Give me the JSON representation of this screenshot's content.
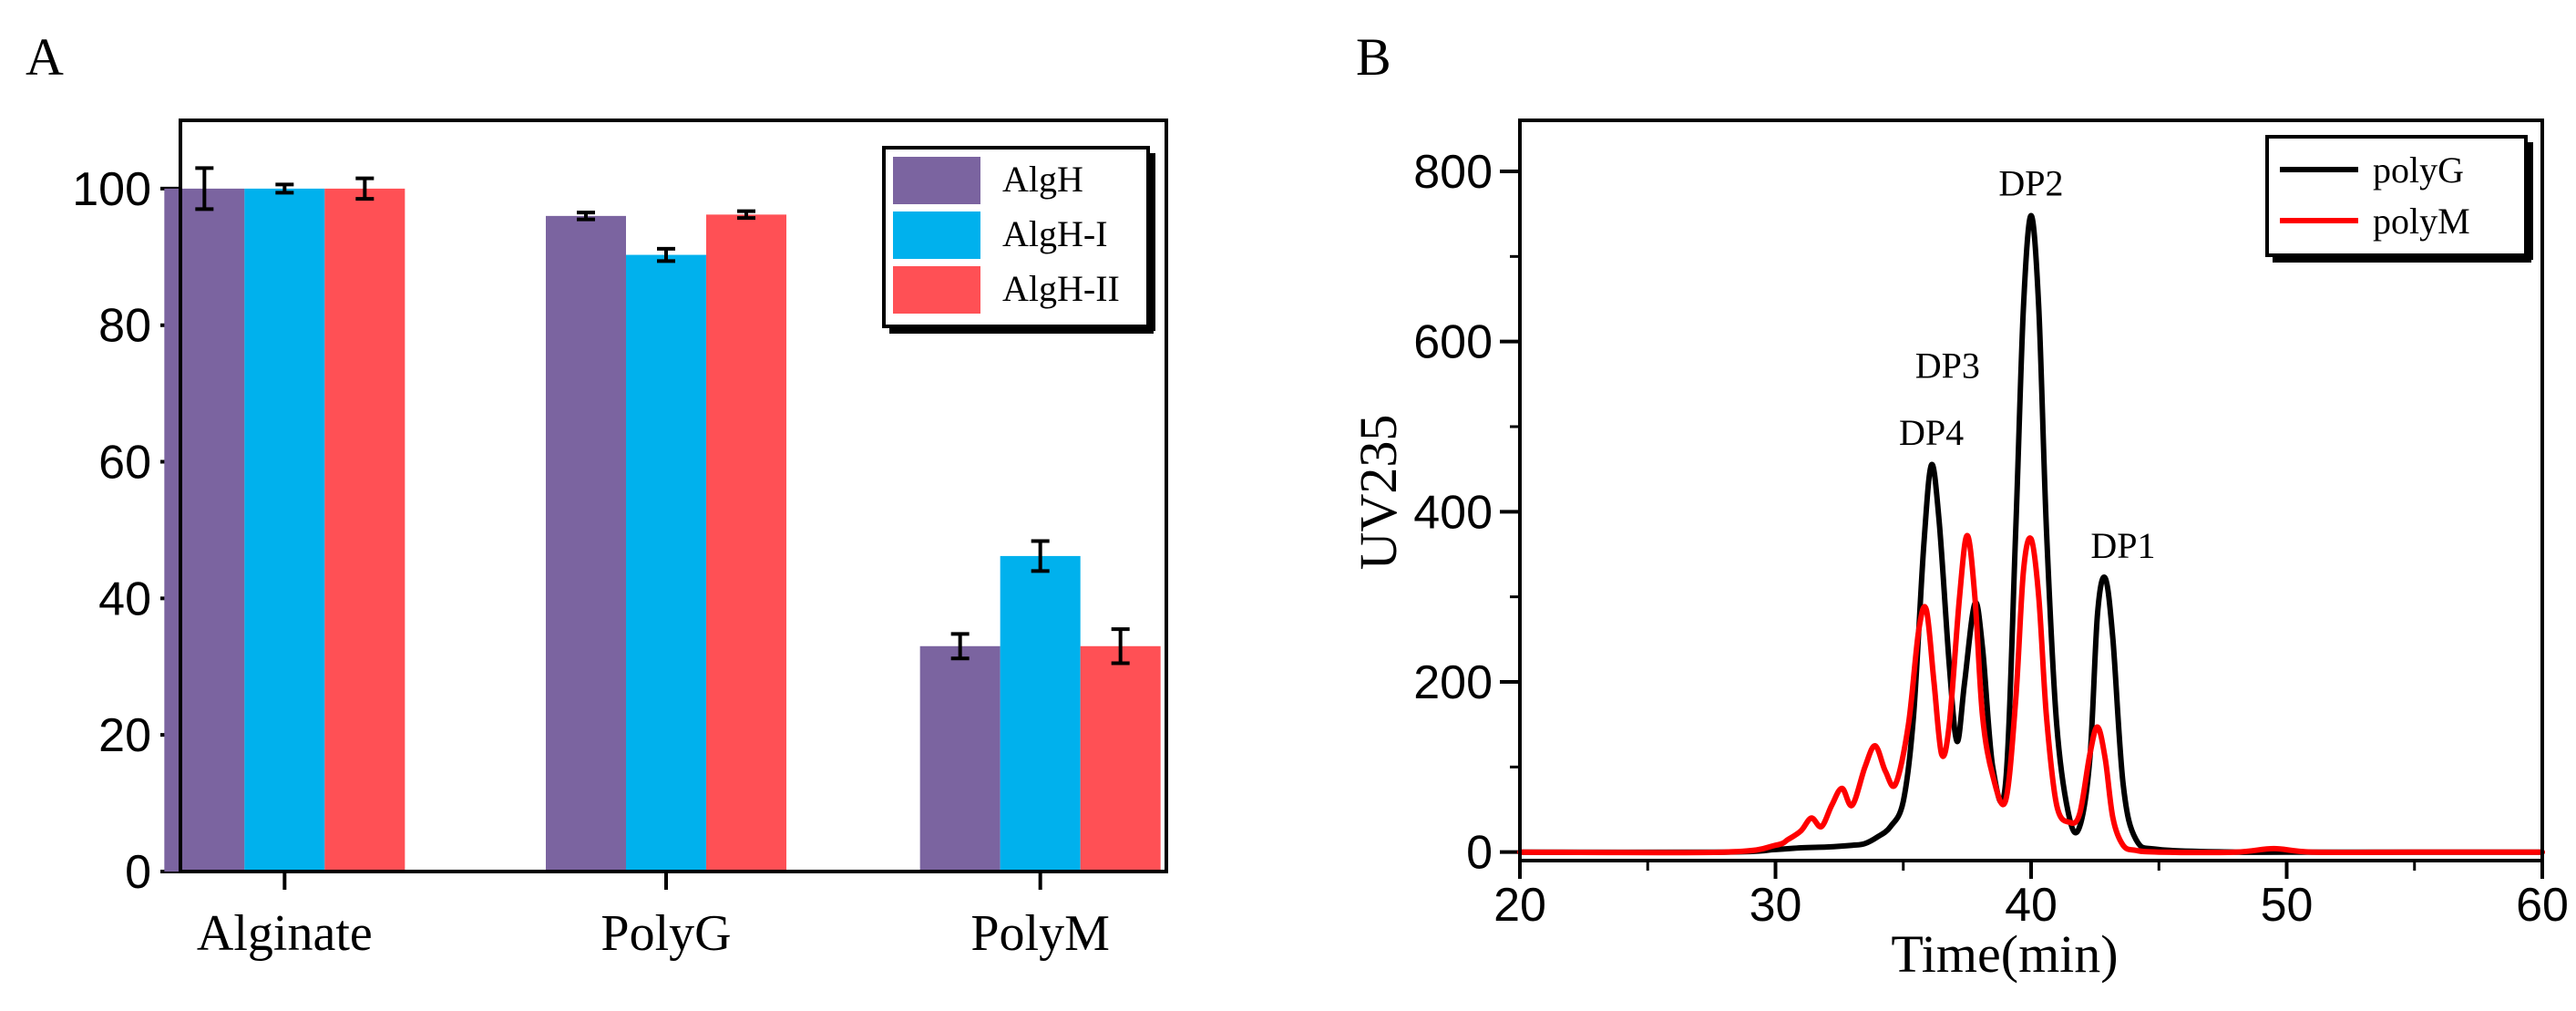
{
  "figure": {
    "panels": [
      {
        "label": "A",
        "chart_data": {
          "type": "bar",
          "categories": [
            "Alginate",
            "PolyG",
            "PolyM"
          ],
          "series": [
            {
              "name": "AlgH",
              "values": [
                100.0,
                96.0,
                33.0
              ],
              "errors": [
                3.0,
                0.5,
                1.8
              ],
              "color": "#7b64a0"
            },
            {
              "name": "AlgH-I",
              "values": [
                100.0,
                90.3,
                46.2
              ],
              "errors": [
                0.6,
                0.9,
                2.2
              ],
              "color": "#00b1ed"
            },
            {
              "name": "AlgH-II",
              "values": [
                100.0,
                96.2,
                33.0
              ],
              "errors": [
                1.5,
                0.5,
                2.5
              ],
              "color": "#ff5055"
            }
          ],
          "xlabel": "",
          "ylabel": "",
          "ylim": [
            0,
            110
          ],
          "yticks": [
            0,
            20,
            40,
            60,
            80,
            100
          ],
          "grid": false,
          "legend": "top-right"
        }
      },
      {
        "label": "B",
        "chart_data": {
          "type": "line",
          "xlabel": "Time(min)",
          "ylabel": "UV235",
          "xlim": [
            20,
            60
          ],
          "ylim": [
            -10,
            860
          ],
          "xticks": [
            20,
            30,
            40,
            50,
            60
          ],
          "yticks": [
            0,
            200,
            400,
            600,
            800
          ],
          "grid": false,
          "legend": "top-right",
          "series": [
            {
              "name": "polyG",
              "color": "#000000",
              "x": [
                20,
                28,
                30,
                31,
                32,
                33,
                33.5,
                34,
                34.5,
                35,
                35.4,
                35.8,
                36.1,
                36.4,
                36.8,
                37.1,
                37.4,
                37.8,
                38.1,
                38.5,
                39.0,
                39.4,
                39.7,
                40.0,
                40.3,
                40.6,
                41.0,
                41.5,
                41.9,
                42.3,
                42.6,
                42.9,
                43.2,
                43.6,
                44.1,
                45,
                48,
                50,
                55,
                60
              ],
              "y": [
                0,
                0,
                3,
                5,
                6,
                8,
                10,
                18,
                30,
                60,
                160,
                360,
                455,
                390,
                220,
                130,
                200,
                292,
                240,
                100,
                80,
                380,
                640,
                748,
                640,
                380,
                150,
                40,
                30,
                110,
                280,
                322,
                250,
                80,
                15,
                3,
                0,
                0,
                0,
                0
              ]
            },
            {
              "name": "polyM",
              "color": "#ff0000",
              "x": [
                20,
                28,
                30,
                30.5,
                31,
                31.4,
                31.8,
                32.2,
                32.6,
                33.0,
                33.5,
                33.9,
                34.3,
                34.7,
                35.2,
                35.6,
                35.9,
                36.2,
                36.5,
                36.8,
                37.2,
                37.5,
                37.8,
                38.1,
                38.5,
                39.0,
                39.4,
                39.7,
                40.0,
                40.3,
                40.6,
                41.0,
                41.5,
                41.9,
                42.3,
                42.6,
                42.9,
                43.2,
                43.6,
                44.1,
                45,
                48,
                49.5,
                51,
                55,
                60
              ],
              "y": [
                0,
                0,
                8,
                15,
                25,
                40,
                30,
                55,
                75,
                55,
                100,
                125,
                95,
                80,
                150,
                260,
                285,
                200,
                115,
                150,
                300,
                372,
                300,
                160,
                90,
                60,
                180,
                330,
                368,
                300,
                160,
                55,
                35,
                45,
                115,
                147,
                110,
                40,
                8,
                2,
                0,
                0,
                4,
                0,
                0,
                0
              ]
            }
          ],
          "annotations": [
            {
              "text": "DP4",
              "x": 36.1,
              "y": 455
            },
            {
              "text": "DP3",
              "x": 37.8,
              "y": 292
            },
            {
              "text": "DP2",
              "x": 40.0,
              "y": 748
            },
            {
              "text": "DP1",
              "x": 42.6,
              "y": 322
            }
          ]
        }
      }
    ]
  }
}
